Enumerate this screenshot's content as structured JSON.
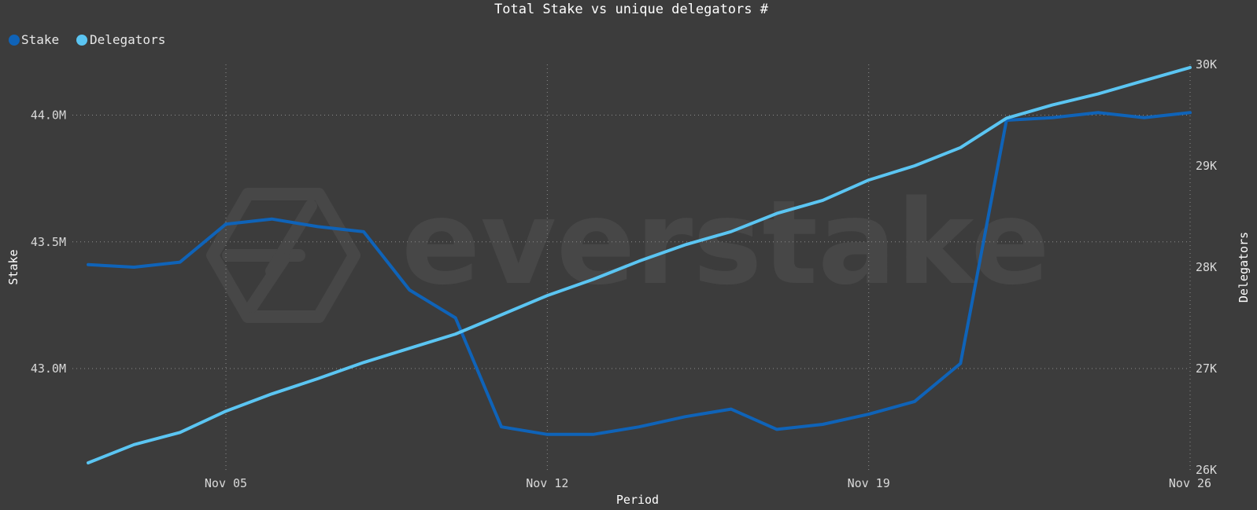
{
  "colors": {
    "background": "#3c3c3c",
    "stake": "#0f63b8",
    "delegators": "#5bc5f2",
    "watermark": "#474747"
  },
  "watermark": "everstake",
  "chart_data": {
    "type": "line",
    "title": "Total Stake vs unique delegators #",
    "xlabel": "Period",
    "ylabel_left": "Stake",
    "ylabel_right": "Delegators",
    "x_ticks": [
      {
        "label": "Nov 05",
        "index": 3
      },
      {
        "label": "Nov 12",
        "index": 10
      },
      {
        "label": "Nov 19",
        "index": 17
      },
      {
        "label": "Nov 26",
        "index": 24
      }
    ],
    "x": [
      "Nov 02",
      "Nov 03",
      "Nov 04",
      "Nov 05",
      "Nov 06",
      "Nov 07",
      "Nov 08",
      "Nov 09",
      "Nov 10",
      "Nov 11",
      "Nov 12",
      "Nov 13",
      "Nov 14",
      "Nov 15",
      "Nov 16",
      "Nov 17",
      "Nov 18",
      "Nov 19",
      "Nov 20",
      "Nov 21",
      "Nov 22",
      "Nov 23",
      "Nov 24",
      "Nov 25",
      "Nov 26"
    ],
    "y_left": {
      "ticks": [
        "43.0M",
        "43.5M",
        "44.0M"
      ],
      "tick_values": [
        43.0,
        43.5,
        44.0
      ],
      "range": [
        42.6,
        44.2
      ],
      "unit": "M"
    },
    "y_right": {
      "ticks": [
        "26K",
        "27K",
        "28K",
        "29K",
        "30K"
      ],
      "tick_values": [
        26,
        27,
        28,
        29,
        30
      ],
      "range": [
        26,
        30
      ],
      "unit": "K"
    },
    "legend": {
      "position": "top-left"
    },
    "grid": true,
    "series": [
      {
        "name": "Stake",
        "axis": "left",
        "values": [
          43.41,
          43.4,
          43.42,
          43.57,
          43.59,
          43.56,
          43.54,
          43.31,
          43.2,
          42.77,
          42.74,
          42.74,
          42.77,
          42.81,
          42.84,
          42.76,
          42.78,
          42.82,
          42.87,
          43.02,
          43.98,
          43.99,
          44.01,
          43.99,
          44.01
        ]
      },
      {
        "name": "Delegators",
        "axis": "right",
        "values": [
          26.07,
          26.25,
          26.37,
          26.58,
          26.75,
          26.9,
          27.06,
          27.2,
          27.34,
          27.53,
          27.72,
          27.88,
          28.06,
          28.22,
          28.35,
          28.53,
          28.66,
          28.86,
          29.0,
          29.18,
          29.47,
          29.6,
          29.71,
          29.84,
          29.97
        ]
      }
    ]
  }
}
